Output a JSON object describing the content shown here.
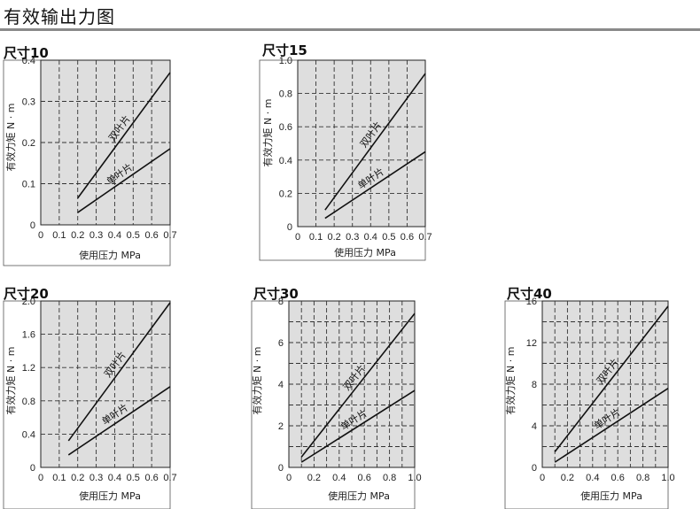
{
  "page": {
    "title": "有效输出力图"
  },
  "chart_data": [
    {
      "type": "line",
      "size_label": "尺寸10",
      "xlabel": "使用压力  MPa",
      "ylabel": "有效力矩  N · m",
      "xlim": [
        0,
        0.7
      ],
      "ylim": [
        0,
        0.4
      ],
      "x_ticks": [
        0,
        0.1,
        0.2,
        0.3,
        0.4,
        0.5,
        0.6,
        0.7
      ],
      "x_tick_labels": [
        "0",
        "0.1",
        "0.2",
        "0.3",
        "0.4",
        "0.5",
        "0.6",
        "0.7"
      ],
      "y_ticks": [
        0,
        0.1,
        0.2,
        0.3,
        0.4
      ],
      "y_tick_labels": [
        "0",
        "0.1",
        "0.2",
        "0.3",
        "0.4"
      ],
      "grid": true,
      "series": [
        {
          "name": "双叶片",
          "x": [
            0.2,
            0.7
          ],
          "y": [
            0.065,
            0.37
          ]
        },
        {
          "name": "单叶片",
          "x": [
            0.2,
            0.7
          ],
          "y": [
            0.03,
            0.185
          ]
        }
      ]
    },
    {
      "type": "line",
      "size_label": "尺寸15",
      "xlabel": "使用压力  MPa",
      "ylabel": "有效力矩  N · m",
      "xlim": [
        0,
        0.7
      ],
      "ylim": [
        0,
        1.0
      ],
      "x_ticks": [
        0,
        0.1,
        0.2,
        0.3,
        0.4,
        0.5,
        0.6,
        0.7
      ],
      "x_tick_labels": [
        "0",
        "0.1",
        "0.2",
        "0.3",
        "0.4",
        "0.5",
        "0.6",
        "0.7"
      ],
      "y_ticks": [
        0,
        0.2,
        0.4,
        0.6,
        0.8,
        1.0
      ],
      "y_tick_labels": [
        "0",
        "0.2",
        "0.4",
        "0.6",
        "0.8",
        "1.0"
      ],
      "grid": true,
      "series": [
        {
          "name": "双叶片",
          "x": [
            0.15,
            0.7
          ],
          "y": [
            0.1,
            0.92
          ]
        },
        {
          "name": "单叶片",
          "x": [
            0.15,
            0.7
          ],
          "y": [
            0.05,
            0.45
          ]
        }
      ]
    },
    {
      "type": "line",
      "size_label": "尺寸20",
      "xlabel": "使用压力  MPa",
      "ylabel": "有效力矩  N · m",
      "xlim": [
        0,
        0.7
      ],
      "ylim": [
        0,
        2.0
      ],
      "x_ticks": [
        0,
        0.1,
        0.2,
        0.3,
        0.4,
        0.5,
        0.6,
        0.7
      ],
      "x_tick_labels": [
        "0",
        "0.1",
        "0.2",
        "0.3",
        "0.4",
        "0.5",
        "0.6",
        "0.7"
      ],
      "y_ticks": [
        0,
        0.4,
        0.8,
        1.2,
        1.6,
        2.0
      ],
      "y_tick_labels": [
        "0",
        "0.4",
        "0.8",
        "1.2",
        "1.6",
        "2.0"
      ],
      "grid": true,
      "series": [
        {
          "name": "双叶片",
          "x": [
            0.15,
            0.7
          ],
          "y": [
            0.32,
            1.98
          ]
        },
        {
          "name": "单叶片",
          "x": [
            0.15,
            0.7
          ],
          "y": [
            0.15,
            0.97
          ]
        }
      ]
    },
    {
      "type": "line",
      "size_label": "尺寸30",
      "xlabel": "使用压力  MPa",
      "ylabel": "有效力矩  N · m",
      "xlim": [
        0,
        1.0
      ],
      "ylim": [
        0,
        8
      ],
      "x_ticks": [
        0,
        0.1,
        0.2,
        0.3,
        0.4,
        0.5,
        0.6,
        0.7,
        0.8,
        0.9,
        1.0
      ],
      "x_tick_labels": [
        "0",
        "",
        "0.2",
        "",
        "0.4",
        "",
        "0.6",
        "",
        "0.8",
        "",
        "1.0"
      ],
      "y_ticks": [
        0,
        1,
        2,
        3,
        4,
        5,
        6,
        7,
        8
      ],
      "y_tick_labels": [
        "0",
        "",
        "2",
        "",
        "4",
        "",
        "6",
        "",
        "8"
      ],
      "grid": true,
      "series": [
        {
          "name": "双叶片",
          "x": [
            0.1,
            1.0
          ],
          "y": [
            0.5,
            7.4
          ]
        },
        {
          "name": "单叶片",
          "x": [
            0.1,
            1.0
          ],
          "y": [
            0.25,
            3.7
          ]
        }
      ]
    },
    {
      "type": "line",
      "size_label": "尺寸40",
      "xlabel": "使用压力  MPa",
      "ylabel": "有效力矩  N · m",
      "xlim": [
        0,
        1.0
      ],
      "ylim": [
        0,
        16
      ],
      "x_ticks": [
        0,
        0.1,
        0.2,
        0.3,
        0.4,
        0.5,
        0.6,
        0.7,
        0.8,
        0.9,
        1.0
      ],
      "x_tick_labels": [
        "0",
        "",
        "0.2",
        "",
        "0.4",
        "",
        "0.6",
        "",
        "0.8",
        "",
        "1.0"
      ],
      "y_ticks": [
        0,
        2,
        4,
        6,
        8,
        10,
        12,
        14,
        16
      ],
      "y_tick_labels": [
        "0",
        "",
        "4",
        "",
        "8",
        "",
        "12",
        "",
        "16"
      ],
      "grid": true,
      "series": [
        {
          "name": "双叶片",
          "x": [
            0.1,
            1.0
          ],
          "y": [
            1.5,
            15.5
          ]
        },
        {
          "name": "单叶片",
          "x": [
            0.1,
            1.0
          ],
          "y": [
            0.5,
            7.6
          ]
        }
      ]
    }
  ]
}
